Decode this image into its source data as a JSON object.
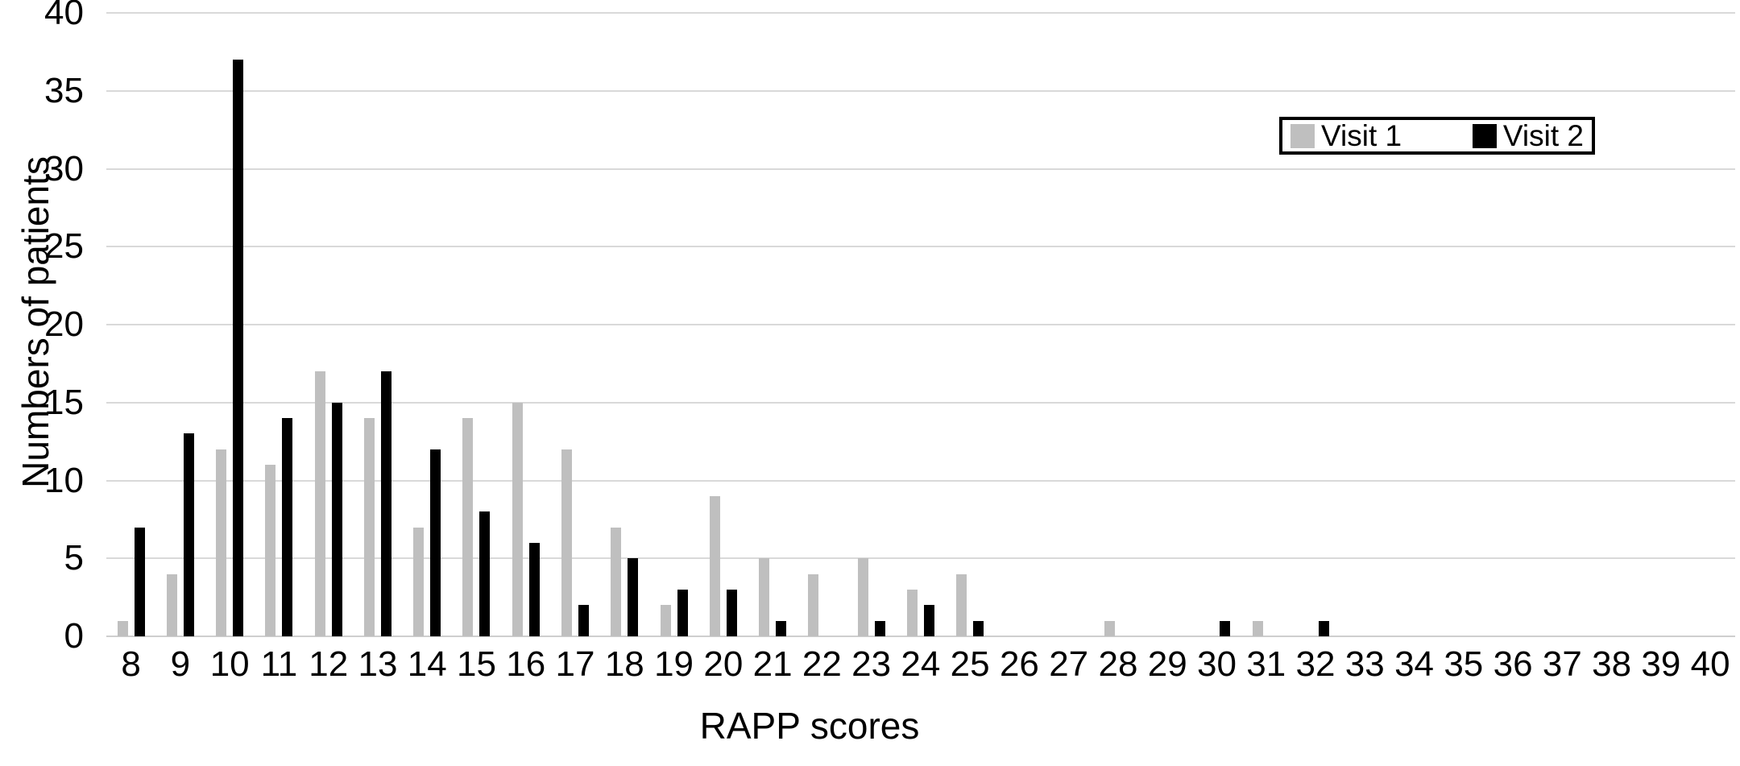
{
  "figure": {
    "background": "#ffffff"
  },
  "colors": {
    "visit1_bar": "#bfbfbf",
    "visit2_bar": "#000000",
    "gridline": "#d9d9d9",
    "baseline": "#cfcfcf",
    "text": "#000000"
  },
  "legend": {
    "items": [
      {
        "label": "Visit 1",
        "color": "#bfbfbf"
      },
      {
        "label": "Visit 2",
        "color": "#000000"
      }
    ]
  },
  "chart_data": {
    "type": "bar",
    "title": "",
    "xlabel": "RAPP scores",
    "ylabel": "Numbers of patients",
    "ylim": [
      0,
      40
    ],
    "yticks": [
      0,
      5,
      10,
      15,
      20,
      25,
      30,
      35,
      40
    ],
    "grid": true,
    "legend_position": "top-right",
    "categories": [
      8,
      9,
      10,
      11,
      12,
      13,
      14,
      15,
      16,
      17,
      18,
      19,
      20,
      21,
      22,
      23,
      24,
      25,
      26,
      27,
      28,
      29,
      30,
      31,
      32,
      33,
      34,
      35,
      36,
      37,
      38,
      39,
      40
    ],
    "series": [
      {
        "name": "Visit 1",
        "color": "#bfbfbf",
        "values": [
          1,
          4,
          12,
          11,
          17,
          14,
          7,
          14,
          15,
          12,
          7,
          2,
          9,
          5,
          4,
          5,
          3,
          4,
          0,
          0,
          1,
          0,
          0,
          1,
          0,
          0,
          0,
          0,
          0,
          0,
          0,
          0,
          0
        ]
      },
      {
        "name": "Visit 2",
        "color": "#000000",
        "values": [
          7,
          13,
          37,
          14,
          15,
          17,
          12,
          8,
          6,
          2,
          5,
          3,
          3,
          1,
          0,
          1,
          2,
          1,
          0,
          0,
          0,
          0,
          1,
          0,
          1,
          0,
          0,
          0,
          0,
          0,
          0,
          0,
          0
        ]
      }
    ]
  }
}
